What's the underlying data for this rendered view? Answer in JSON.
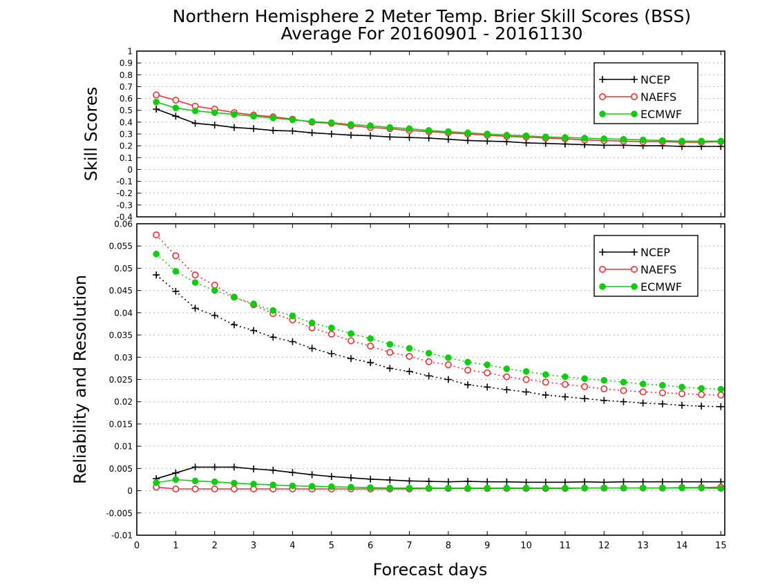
{
  "title": "Northern Hemisphere 2 Meter Temp. Brier Skill Scores (BSS)",
  "subtitle": "Average For 20160901 - 20161130",
  "colors": {
    "NCEP": "#000000",
    "NAEFS": "#ee3030",
    "ECMWF": "#10cc10",
    "grid": "#b0b0b0"
  },
  "chart_data": [
    {
      "type": "line",
      "ylabel": "Skill Scores",
      "xlabel": "",
      "xlim": [
        0,
        15.1
      ],
      "ylim": [
        -0.4,
        1
      ],
      "yticks": [
        "1",
        "0.9",
        "0.8",
        "0.7",
        "0.6",
        "0.5",
        "0.4",
        "0.3",
        "0.2",
        "0.1",
        "0",
        "-0.1",
        "-0.2",
        "-0.3",
        "-0.4"
      ],
      "grid": true,
      "legend_position": "top-right",
      "x": [
        0.5,
        1,
        1.5,
        2,
        2.5,
        3,
        3.5,
        4,
        4.5,
        5,
        5.5,
        6,
        6.5,
        7,
        7.5,
        8,
        8.5,
        9,
        9.5,
        10,
        10.5,
        11,
        11.5,
        12,
        12.5,
        13,
        13.5,
        14,
        14.5,
        15
      ],
      "series": [
        {
          "name": "NCEP",
          "style": "solid",
          "marker": "plus",
          "values": [
            0.51,
            0.45,
            0.39,
            0.375,
            0.355,
            0.345,
            0.33,
            0.325,
            0.31,
            0.3,
            0.29,
            0.285,
            0.275,
            0.27,
            0.265,
            0.255,
            0.245,
            0.24,
            0.235,
            0.225,
            0.22,
            0.215,
            0.21,
            0.205,
            0.205,
            0.2,
            0.2,
            0.195,
            0.195,
            0.195
          ]
        },
        {
          "name": "NAEFS",
          "style": "solid",
          "marker": "circle-open",
          "values": [
            0.63,
            0.585,
            0.535,
            0.51,
            0.48,
            0.46,
            0.445,
            0.425,
            0.4,
            0.39,
            0.37,
            0.355,
            0.345,
            0.33,
            0.32,
            0.31,
            0.3,
            0.29,
            0.28,
            0.275,
            0.265,
            0.26,
            0.25,
            0.245,
            0.24,
            0.235,
            0.235,
            0.23,
            0.23,
            0.235
          ]
        },
        {
          "name": "ECMWF",
          "style": "solid",
          "marker": "circle-filled",
          "values": [
            0.57,
            0.52,
            0.495,
            0.48,
            0.465,
            0.45,
            0.435,
            0.42,
            0.405,
            0.395,
            0.38,
            0.37,
            0.355,
            0.345,
            0.33,
            0.32,
            0.31,
            0.3,
            0.29,
            0.285,
            0.275,
            0.27,
            0.265,
            0.26,
            0.255,
            0.25,
            0.245,
            0.24,
            0.24,
            0.24
          ]
        }
      ]
    },
    {
      "type": "line",
      "ylabel": "Reliability and Resolution",
      "xlabel": "Forecast days",
      "xlim": [
        0,
        15.1
      ],
      "ylim": [
        -0.01,
        0.06
      ],
      "yticks": [
        "0.06",
        "0.055",
        "0.05",
        "0.045",
        "0.04",
        "0.035",
        "0.03",
        "0.025",
        "0.02",
        "0.015",
        "0.01",
        "0.005",
        "0",
        "-0.005",
        "-0.01"
      ],
      "xticks": [
        "0",
        "1",
        "2",
        "3",
        "4",
        "5",
        "6",
        "7",
        "8",
        "9",
        "10",
        "11",
        "12",
        "13",
        "14",
        "15"
      ],
      "grid": true,
      "legend_position": "top-right",
      "x": [
        0.5,
        1,
        1.5,
        2,
        2.5,
        3,
        3.5,
        4,
        4.5,
        5,
        5.5,
        6,
        6.5,
        7,
        7.5,
        8,
        8.5,
        9,
        9.5,
        10,
        10.5,
        11,
        11.5,
        12,
        12.5,
        13,
        13.5,
        14,
        14.5,
        15
      ],
      "series": [
        {
          "name": "NCEP",
          "style": "dotted",
          "marker": "plus",
          "values": [
            0.0485,
            0.0448,
            0.041,
            0.0394,
            0.0373,
            0.036,
            0.0345,
            0.0335,
            0.032,
            0.0308,
            0.0297,
            0.0288,
            0.0275,
            0.0268,
            0.0258,
            0.025,
            0.0238,
            0.0233,
            0.0227,
            0.0222,
            0.0215,
            0.0211,
            0.0207,
            0.0203,
            0.02,
            0.0197,
            0.0195,
            0.0192,
            0.019,
            0.0189
          ]
        },
        {
          "name": "NAEFS",
          "style": "dotted",
          "marker": "circle-open",
          "values": [
            0.0575,
            0.0528,
            0.0485,
            0.0462,
            0.0435,
            0.0418,
            0.0398,
            0.0384,
            0.0366,
            0.0352,
            0.0337,
            0.0325,
            0.0311,
            0.0302,
            0.029,
            0.0283,
            0.0271,
            0.0265,
            0.0256,
            0.025,
            0.0244,
            0.0239,
            0.0234,
            0.0229,
            0.0225,
            0.0222,
            0.022,
            0.0218,
            0.0216,
            0.0215
          ]
        },
        {
          "name": "ECMWF",
          "style": "dotted",
          "marker": "circle-filled",
          "values": [
            0.0532,
            0.0493,
            0.0468,
            0.045,
            0.0435,
            0.042,
            0.0405,
            0.0393,
            0.0377,
            0.0366,
            0.0353,
            0.0342,
            0.0329,
            0.032,
            0.0309,
            0.0299,
            0.0289,
            0.0283,
            0.0274,
            0.0268,
            0.0261,
            0.0256,
            0.0252,
            0.0248,
            0.0244,
            0.024,
            0.0237,
            0.0233,
            0.023,
            0.0228
          ]
        },
        {
          "name": "NCEP",
          "style": "solid",
          "marker": "plus",
          "in_legend": false,
          "values": [
            0.0027,
            0.004,
            0.0053,
            0.0053,
            0.0053,
            0.0049,
            0.0046,
            0.0041,
            0.0036,
            0.0032,
            0.0029,
            0.0026,
            0.0024,
            0.0022,
            0.0021,
            0.002,
            0.0021,
            0.002,
            0.002,
            0.0019,
            0.0019,
            0.0019,
            0.002,
            0.0019,
            0.002,
            0.002,
            0.002,
            0.002,
            0.002,
            0.002
          ]
        },
        {
          "name": "NAEFS",
          "style": "solid",
          "marker": "circle-open",
          "in_legend": false,
          "values": [
            0.0008,
            0.0004,
            0.0004,
            0.0004,
            0.0004,
            0.0004,
            0.0004,
            0.0004,
            0.0004,
            0.0004,
            0.0004,
            0.0004,
            0.0004,
            0.0004,
            0.0005,
            0.0005,
            0.0005,
            0.0005,
            0.0005,
            0.0005,
            0.0005,
            0.0005,
            0.0006,
            0.0006,
            0.0006,
            0.0006,
            0.0006,
            0.0007,
            0.0007,
            0.0008
          ]
        },
        {
          "name": "ECMWF",
          "style": "solid",
          "marker": "circle-filled",
          "in_legend": false,
          "values": [
            0.0018,
            0.0025,
            0.0022,
            0.002,
            0.0017,
            0.0015,
            0.0013,
            0.0011,
            0.001,
            0.0009,
            0.0008,
            0.0007,
            0.0006,
            0.0006,
            0.0006,
            0.0006,
            0.0006,
            0.0006,
            0.0006,
            0.0006,
            0.0006,
            0.0006,
            0.0006,
            0.0006,
            0.0006,
            0.0006,
            0.0006,
            0.0006,
            0.0006,
            0.0005
          ]
        }
      ]
    }
  ]
}
